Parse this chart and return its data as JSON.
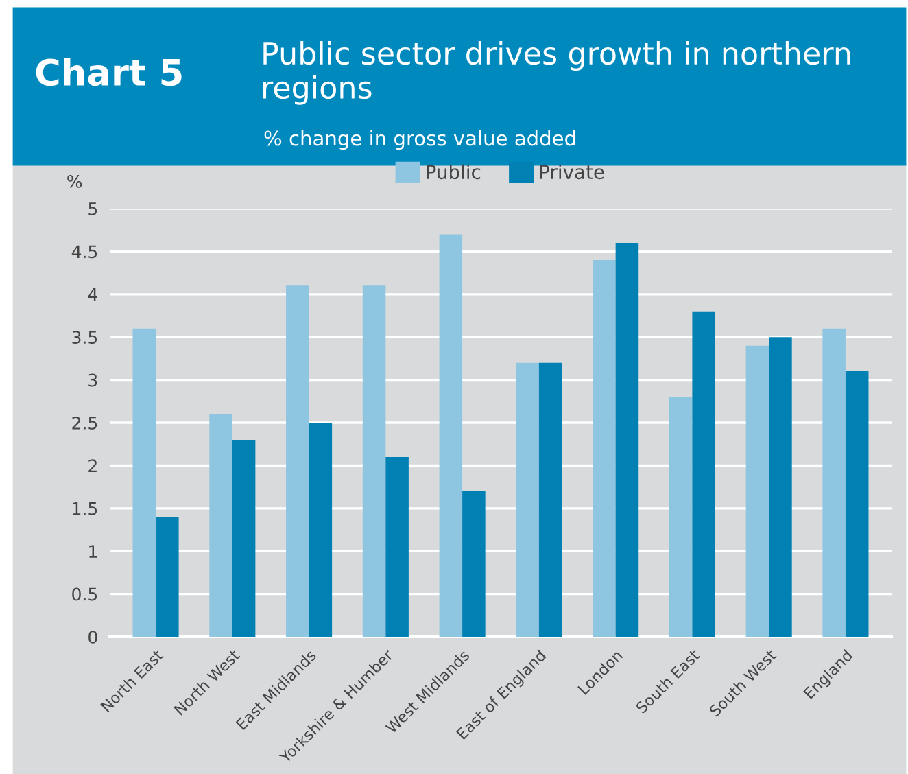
{
  "chart_data": {
    "type": "bar",
    "title": "Chart 5",
    "subtitle": "Public sector drives growth in northern regions",
    "annotations": [
      "% change in gross value added"
    ],
    "ylabel": "%",
    "categories": [
      "North East",
      "North West",
      "East Midlands",
      "Yorkshire & Humber",
      "West Midlands",
      "East of England",
      "London",
      "South East",
      "South West",
      "England"
    ],
    "series": [
      {
        "name": "Public",
        "color": "#8ec5e1",
        "values": [
          3.6,
          2.6,
          4.1,
          4.1,
          4.7,
          3.2,
          4.4,
          2.8,
          3.4,
          3.6
        ]
      },
      {
        "name": "Private",
        "color": "#0080b3",
        "values": [
          1.4,
          2.3,
          2.5,
          2.1,
          1.7,
          3.2,
          4.6,
          3.8,
          3.5,
          3.1
        ]
      }
    ],
    "ylim": [
      0,
      5
    ],
    "yticks": [
      0,
      0.5,
      1,
      1.5,
      2,
      2.5,
      3,
      3.5,
      4,
      4.5,
      5
    ],
    "grid": "y",
    "legend": "top"
  }
}
